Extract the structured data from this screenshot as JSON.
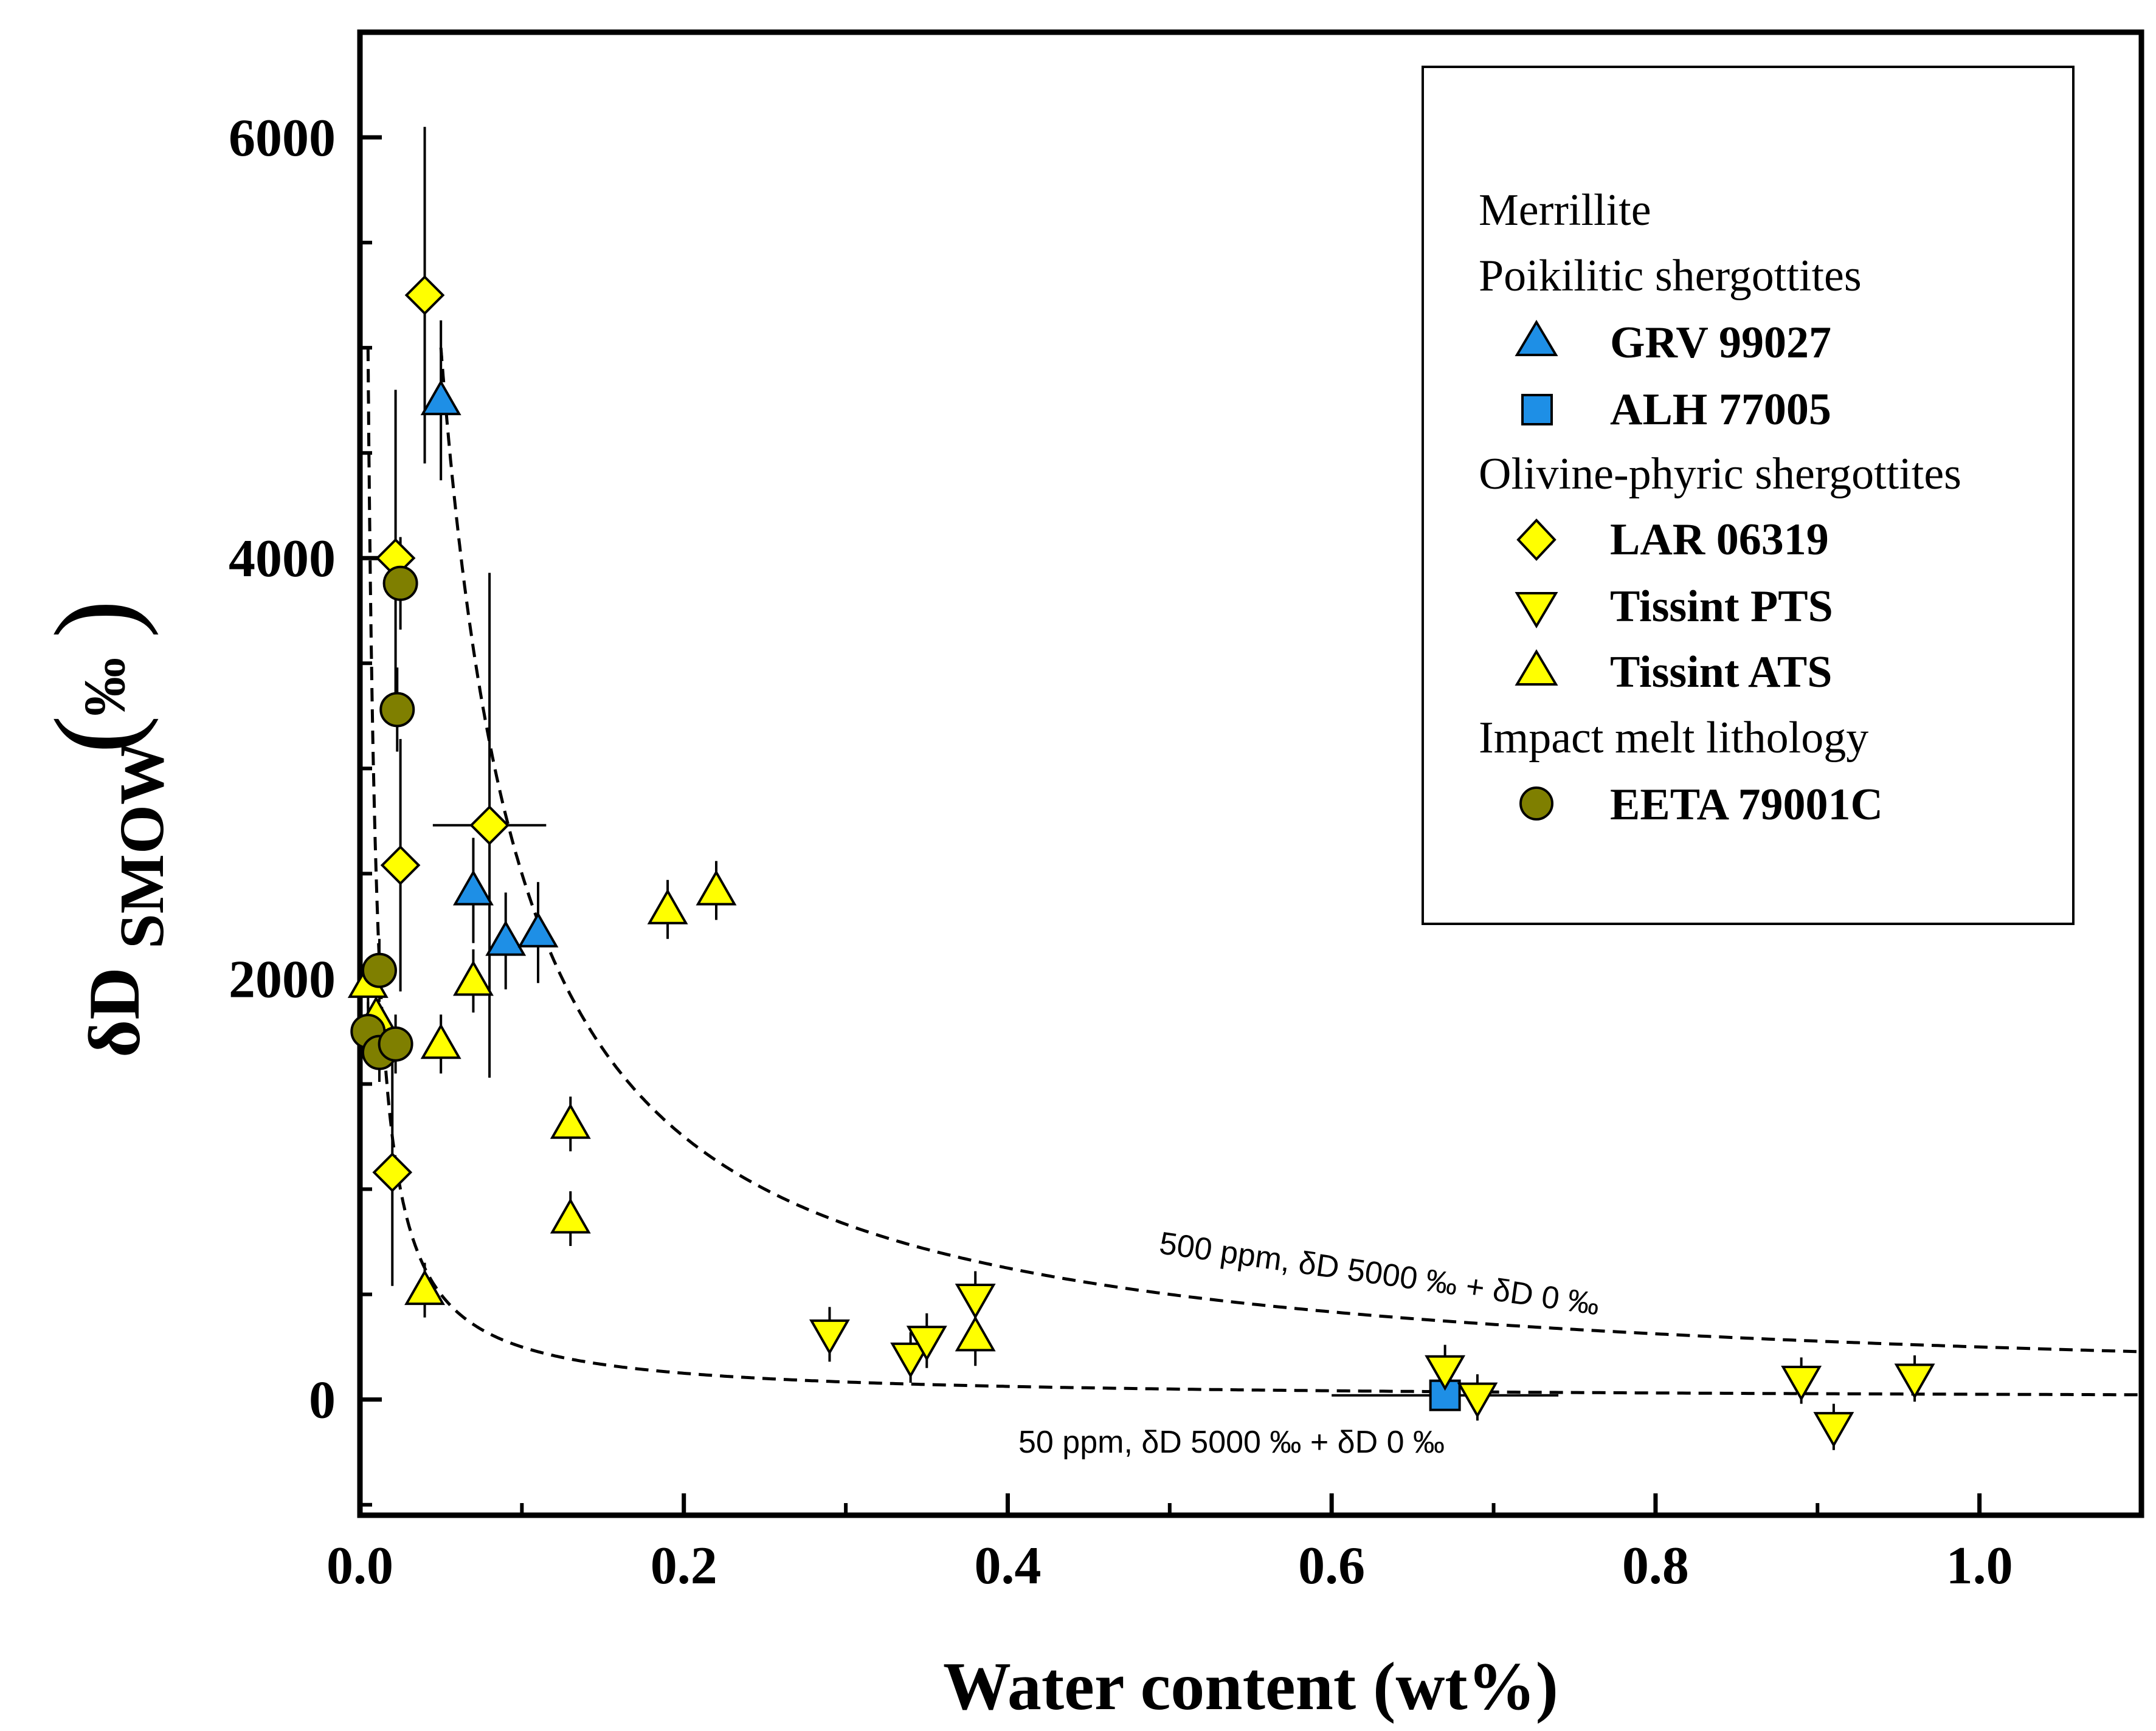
{
  "chart_data": {
    "type": "scatter",
    "xlabel": "Water content (wt%)",
    "ylabel_main": "δD",
    "ylabel_sub": "SMOW",
    "ylabel_unit": "‰",
    "xlim": [
      0,
      1.1
    ],
    "ylim": [
      -550,
      6500
    ],
    "x_ticks": [
      0.0,
      0.2,
      0.4,
      0.6,
      0.8,
      1.0
    ],
    "x_tick_labels": [
      "0.0",
      "0.2",
      "0.4",
      "0.6",
      "0.8",
      "1.0"
    ],
    "y_ticks": [
      0,
      2000,
      4000,
      6000
    ],
    "y_tick_labels": [
      "0",
      "2000",
      "4000",
      "6000"
    ],
    "legend": {
      "position": "top-right",
      "headers": [
        "Merrillite",
        "Poikilitic shergottites",
        "Olivine-phyric shergottites",
        "Impact melt lithology"
      ]
    },
    "series": [
      {
        "name": "GRV 99027",
        "group": "Poikilitic shergottites",
        "marker": "triangle-up",
        "color": "#1E8FE6",
        "points": [
          {
            "x": 0.05,
            "y": 4750,
            "yerr": 380
          },
          {
            "x": 0.07,
            "y": 2420,
            "yerr": 250
          },
          {
            "x": 0.09,
            "y": 2180,
            "yerr": 230
          },
          {
            "x": 0.11,
            "y": 2220,
            "yerr": 240
          }
        ]
      },
      {
        "name": "ALH 77005",
        "group": "Poikilitic shergottites",
        "marker": "square",
        "color": "#1E8FE6",
        "points": [
          {
            "x": 0.67,
            "y": 20,
            "xerr": 0.07
          }
        ]
      },
      {
        "name": "LAR 06319",
        "group": "Olivine-phyric shergottites",
        "marker": "diamond",
        "color": "#FFFF00",
        "points": [
          {
            "x": 0.04,
            "y": 5250,
            "yerr": 800
          },
          {
            "x": 0.08,
            "y": 2730,
            "yerr": 1200,
            "xerr": 0.035
          },
          {
            "x": 0.022,
            "y": 4000,
            "yerr": 800
          },
          {
            "x": 0.025,
            "y": 2540,
            "yerr": 600
          },
          {
            "x": 0.02,
            "y": 1080,
            "yerr": 540
          }
        ]
      },
      {
        "name": "Tissint PTS",
        "group": "Olivine-phyric shergottites",
        "marker": "triangle-down",
        "color": "#FFFF00",
        "points": [
          {
            "x": 0.29,
            "y": 310,
            "yerr": 130
          },
          {
            "x": 0.34,
            "y": 200,
            "yerr": 120
          },
          {
            "x": 0.35,
            "y": 280,
            "yerr": 130
          },
          {
            "x": 0.38,
            "y": 480,
            "yerr": 130
          },
          {
            "x": 0.67,
            "y": 140,
            "yerr": 120
          },
          {
            "x": 0.69,
            "y": 10,
            "yerr": 110
          },
          {
            "x": 0.89,
            "y": 90,
            "yerr": 110
          },
          {
            "x": 0.91,
            "y": -130,
            "yerr": 110
          },
          {
            "x": 0.96,
            "y": 100,
            "yerr": 110
          }
        ]
      },
      {
        "name": "Tissint ATS",
        "group": "Olivine-phyric shergottites",
        "marker": "triangle-up",
        "color": "#FFFF00",
        "points": [
          {
            "x": 0.19,
            "y": 2330,
            "yerr": 140
          },
          {
            "x": 0.22,
            "y": 2420,
            "yerr": 140
          },
          {
            "x": 0.07,
            "y": 1990,
            "yerr": 150
          },
          {
            "x": 0.05,
            "y": 1690,
            "yerr": 140
          },
          {
            "x": 0.13,
            "y": 1310,
            "yerr": 130
          },
          {
            "x": 0.13,
            "y": 860,
            "yerr": 130
          },
          {
            "x": 0.04,
            "y": 520,
            "yerr": 130
          },
          {
            "x": 0.38,
            "y": 300,
            "yerr": 140
          },
          {
            "x": 0.005,
            "y": 1980,
            "yerr": 120
          },
          {
            "x": 0.01,
            "y": 1820,
            "yerr": 120
          }
        ]
      },
      {
        "name": "EETA 79001C",
        "group": "Impact melt lithology",
        "marker": "circle",
        "color": "#7F7F00",
        "points": [
          {
            "x": 0.025,
            "y": 3880,
            "yerr": 220
          },
          {
            "x": 0.023,
            "y": 3280,
            "yerr": 200
          },
          {
            "x": 0.012,
            "y": 2040,
            "yerr": 150
          },
          {
            "x": 0.005,
            "y": 1750,
            "yerr": 140
          },
          {
            "x": 0.012,
            "y": 1650,
            "yerr": 140
          },
          {
            "x": 0.022,
            "y": 1690,
            "yerr": 140
          }
        ]
      }
    ],
    "curves": [
      {
        "name": "500 ppm mixing",
        "label": "500 ppm, δD 5000 ‰ + δD 0 ‰",
        "A": 0.05,
        "dmax": 5000,
        "x_start": 0.05
      },
      {
        "name": "50 ppm mixing",
        "label": "50 ppm, δD 5000 ‰ + δD 0 ‰",
        "A": 0.005,
        "dmax": 5000,
        "x_start": 0.005
      }
    ]
  }
}
